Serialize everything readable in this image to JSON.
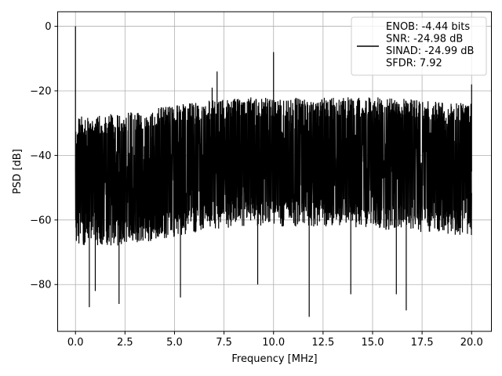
{
  "chart_data": {
    "type": "line",
    "xlabel": "Frequency [MHz]",
    "ylabel": "PSD [dB]",
    "xlim": [
      -0.9,
      21.0
    ],
    "ylim": [
      -94.5,
      4.5
    ],
    "xticks": [
      0.0,
      2.5,
      5.0,
      7.5,
      10.0,
      12.5,
      15.0,
      17.5,
      20.0
    ],
    "xtick_labels": [
      "0.0",
      "2.5",
      "5.0",
      "7.5",
      "10.0",
      "12.5",
      "15.0",
      "17.5",
      "20.0"
    ],
    "yticks": [
      0,
      -20,
      -40,
      -60,
      -80
    ],
    "ytick_labels": [
      "0",
      "−20",
      "−40",
      "−60",
      "−80"
    ],
    "grid": true,
    "legend_position": "top-right",
    "series": [
      {
        "name": "ENOB: -4.44 bits\nSNR: -24.98 dB\nSINAD: -24.99 dB\nSFDR: 7.92",
        "color": "#000000",
        "noise_floor_upper_db": [
          -28,
          -27,
          -25,
          -23,
          -22,
          -22,
          -22,
          -22,
          -23,
          -24
        ],
        "noise_floor_lower_db": [
          -68,
          -68,
          -66,
          -63,
          -62,
          -62,
          -62,
          -63,
          -64,
          -65
        ],
        "spikes": [
          {
            "x": 0.0,
            "y": 0
          },
          {
            "x": 6.9,
            "y": -19
          },
          {
            "x": 7.15,
            "y": -14
          },
          {
            "x": 10.0,
            "y": -8
          },
          {
            "x": 20.0,
            "y": -18
          }
        ],
        "dips": [
          {
            "x": 0.7,
            "y": -87
          },
          {
            "x": 1.0,
            "y": -82
          },
          {
            "x": 2.2,
            "y": -86
          },
          {
            "x": 5.3,
            "y": -84
          },
          {
            "x": 9.2,
            "y": -80
          },
          {
            "x": 11.8,
            "y": -90
          },
          {
            "x": 13.9,
            "y": -83
          },
          {
            "x": 16.2,
            "y": -83
          },
          {
            "x": 16.7,
            "y": -88
          }
        ]
      }
    ]
  }
}
